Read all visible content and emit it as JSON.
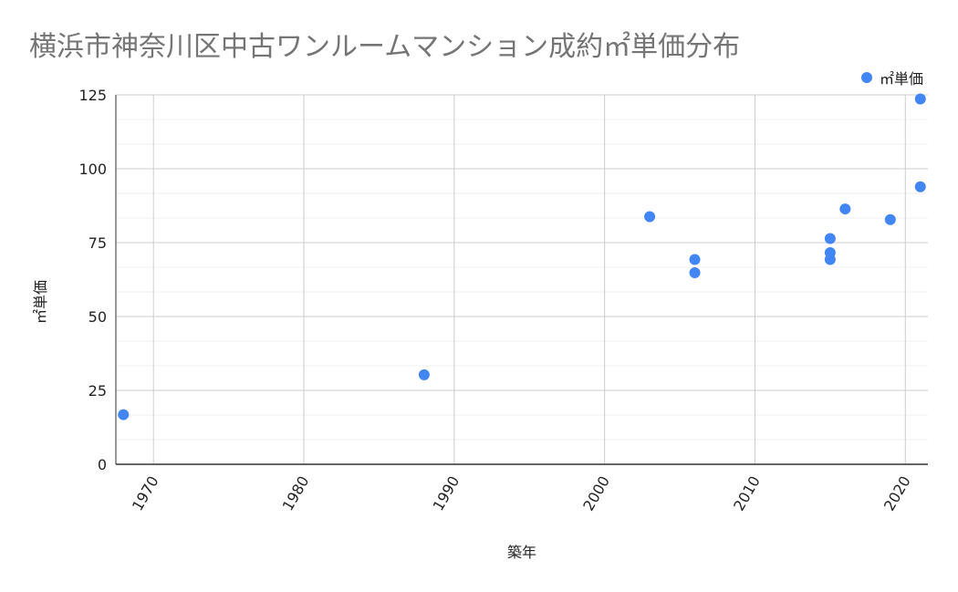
{
  "chart_data": {
    "type": "scatter",
    "title": "横浜市神奈川区中古ワンルームマンション成約㎡単価分布",
    "xlabel": "築年",
    "ylabel": "㎡単価",
    "xlim": [
      1967.5,
      2021.5
    ],
    "ylim": [
      0,
      125
    ],
    "x_ticks": [
      1970,
      1980,
      1990,
      2000,
      2010,
      2020
    ],
    "y_ticks": [
      0,
      25,
      50,
      75,
      100,
      125
    ],
    "y_minor_step": 8.333,
    "grid": true,
    "legend_position": "top-right",
    "series": [
      {
        "name": "㎡単価",
        "color": "#4285f4",
        "points": [
          {
            "x": 1968,
            "y": 16.8
          },
          {
            "x": 1988,
            "y": 30.3
          },
          {
            "x": 2003,
            "y": 83.8
          },
          {
            "x": 2006,
            "y": 69.3
          },
          {
            "x": 2006,
            "y": 64.8
          },
          {
            "x": 2015,
            "y": 76.4
          },
          {
            "x": 2015,
            "y": 71.6
          },
          {
            "x": 2015,
            "y": 69.3
          },
          {
            "x": 2016,
            "y": 86.4
          },
          {
            "x": 2019,
            "y": 82.8
          },
          {
            "x": 2021,
            "y": 123.6
          },
          {
            "x": 2021,
            "y": 93.9
          }
        ]
      }
    ]
  }
}
